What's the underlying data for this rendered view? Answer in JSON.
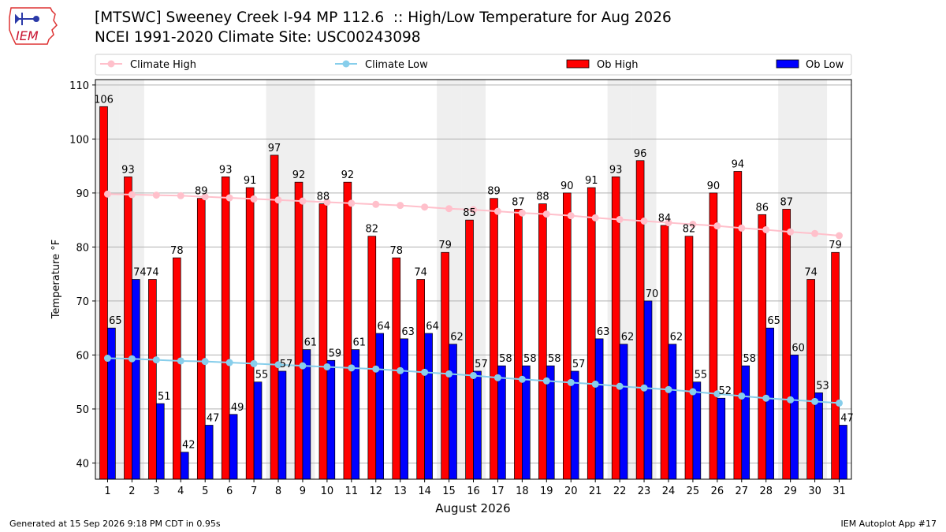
{
  "logo_text": "IEM",
  "title_line1": "[MTSWC] Sweeney Creek I-94 MP 112.6  :: High/Low Temperature for Aug 2026",
  "title_line2": "NCEI 1991-2020 Climate Site: USC00243098",
  "footer_left": "Generated at 15 Sep 2026 9:18 PM CDT in 0.95s",
  "footer_right": "IEM Autoplot App #17",
  "chart_data": {
    "type": "bar",
    "xlabel": "August 2026",
    "ylabel": "Temperature °F",
    "ylim": [
      37,
      111
    ],
    "yticks": [
      40,
      50,
      60,
      70,
      80,
      90,
      100,
      110
    ],
    "grid": true,
    "legend_position": "top",
    "categories": [
      "1",
      "2",
      "3",
      "4",
      "5",
      "6",
      "7",
      "8",
      "9",
      "10",
      "11",
      "12",
      "13",
      "14",
      "15",
      "16",
      "17",
      "18",
      "19",
      "20",
      "21",
      "22",
      "23",
      "24",
      "25",
      "26",
      "27",
      "28",
      "29",
      "30",
      "31"
    ],
    "weekend_shading_days": [
      1,
      2,
      8,
      9,
      15,
      16,
      22,
      23,
      29,
      30
    ],
    "series": [
      {
        "name": "Ob High",
        "kind": "bar",
        "color": "#ff0000",
        "values": [
          106,
          93,
          74,
          78,
          89,
          93,
          91,
          97,
          92,
          88,
          92,
          82,
          78,
          74,
          79,
          85,
          89,
          87,
          88,
          90,
          91,
          93,
          96,
          84,
          82,
          90,
          94,
          86,
          87,
          74,
          79
        ]
      },
      {
        "name": "Ob Low",
        "kind": "bar",
        "color": "#0000ff",
        "values": [
          65,
          74,
          51,
          42,
          47,
          49,
          55,
          57,
          61,
          59,
          61,
          64,
          63,
          64,
          62,
          57,
          58,
          58,
          58,
          57,
          63,
          62,
          70,
          62,
          55,
          52,
          58,
          65,
          60,
          53,
          47
        ]
      },
      {
        "name": "Climate High",
        "kind": "line",
        "color": "#ffc0cb",
        "values": [
          89.8,
          89.7,
          89.6,
          89.5,
          89.3,
          89.1,
          88.9,
          88.7,
          88.5,
          88.3,
          88.1,
          87.9,
          87.7,
          87.4,
          87.1,
          86.9,
          86.6,
          86.3,
          86.1,
          85.8,
          85.4,
          85.1,
          84.8,
          84.5,
          84.2,
          83.9,
          83.5,
          83.2,
          82.8,
          82.5,
          82.1
        ]
      },
      {
        "name": "Climate Low",
        "kind": "line",
        "color": "#87ceeb",
        "values": [
          59.4,
          59.3,
          59.1,
          58.9,
          58.8,
          58.6,
          58.4,
          58.2,
          58.0,
          57.8,
          57.6,
          57.4,
          57.1,
          56.8,
          56.5,
          56.2,
          55.8,
          55.5,
          55.2,
          54.9,
          54.6,
          54.2,
          53.9,
          53.6,
          53.2,
          52.8,
          52.4,
          52.0,
          51.7,
          51.4,
          51.1
        ]
      }
    ]
  }
}
